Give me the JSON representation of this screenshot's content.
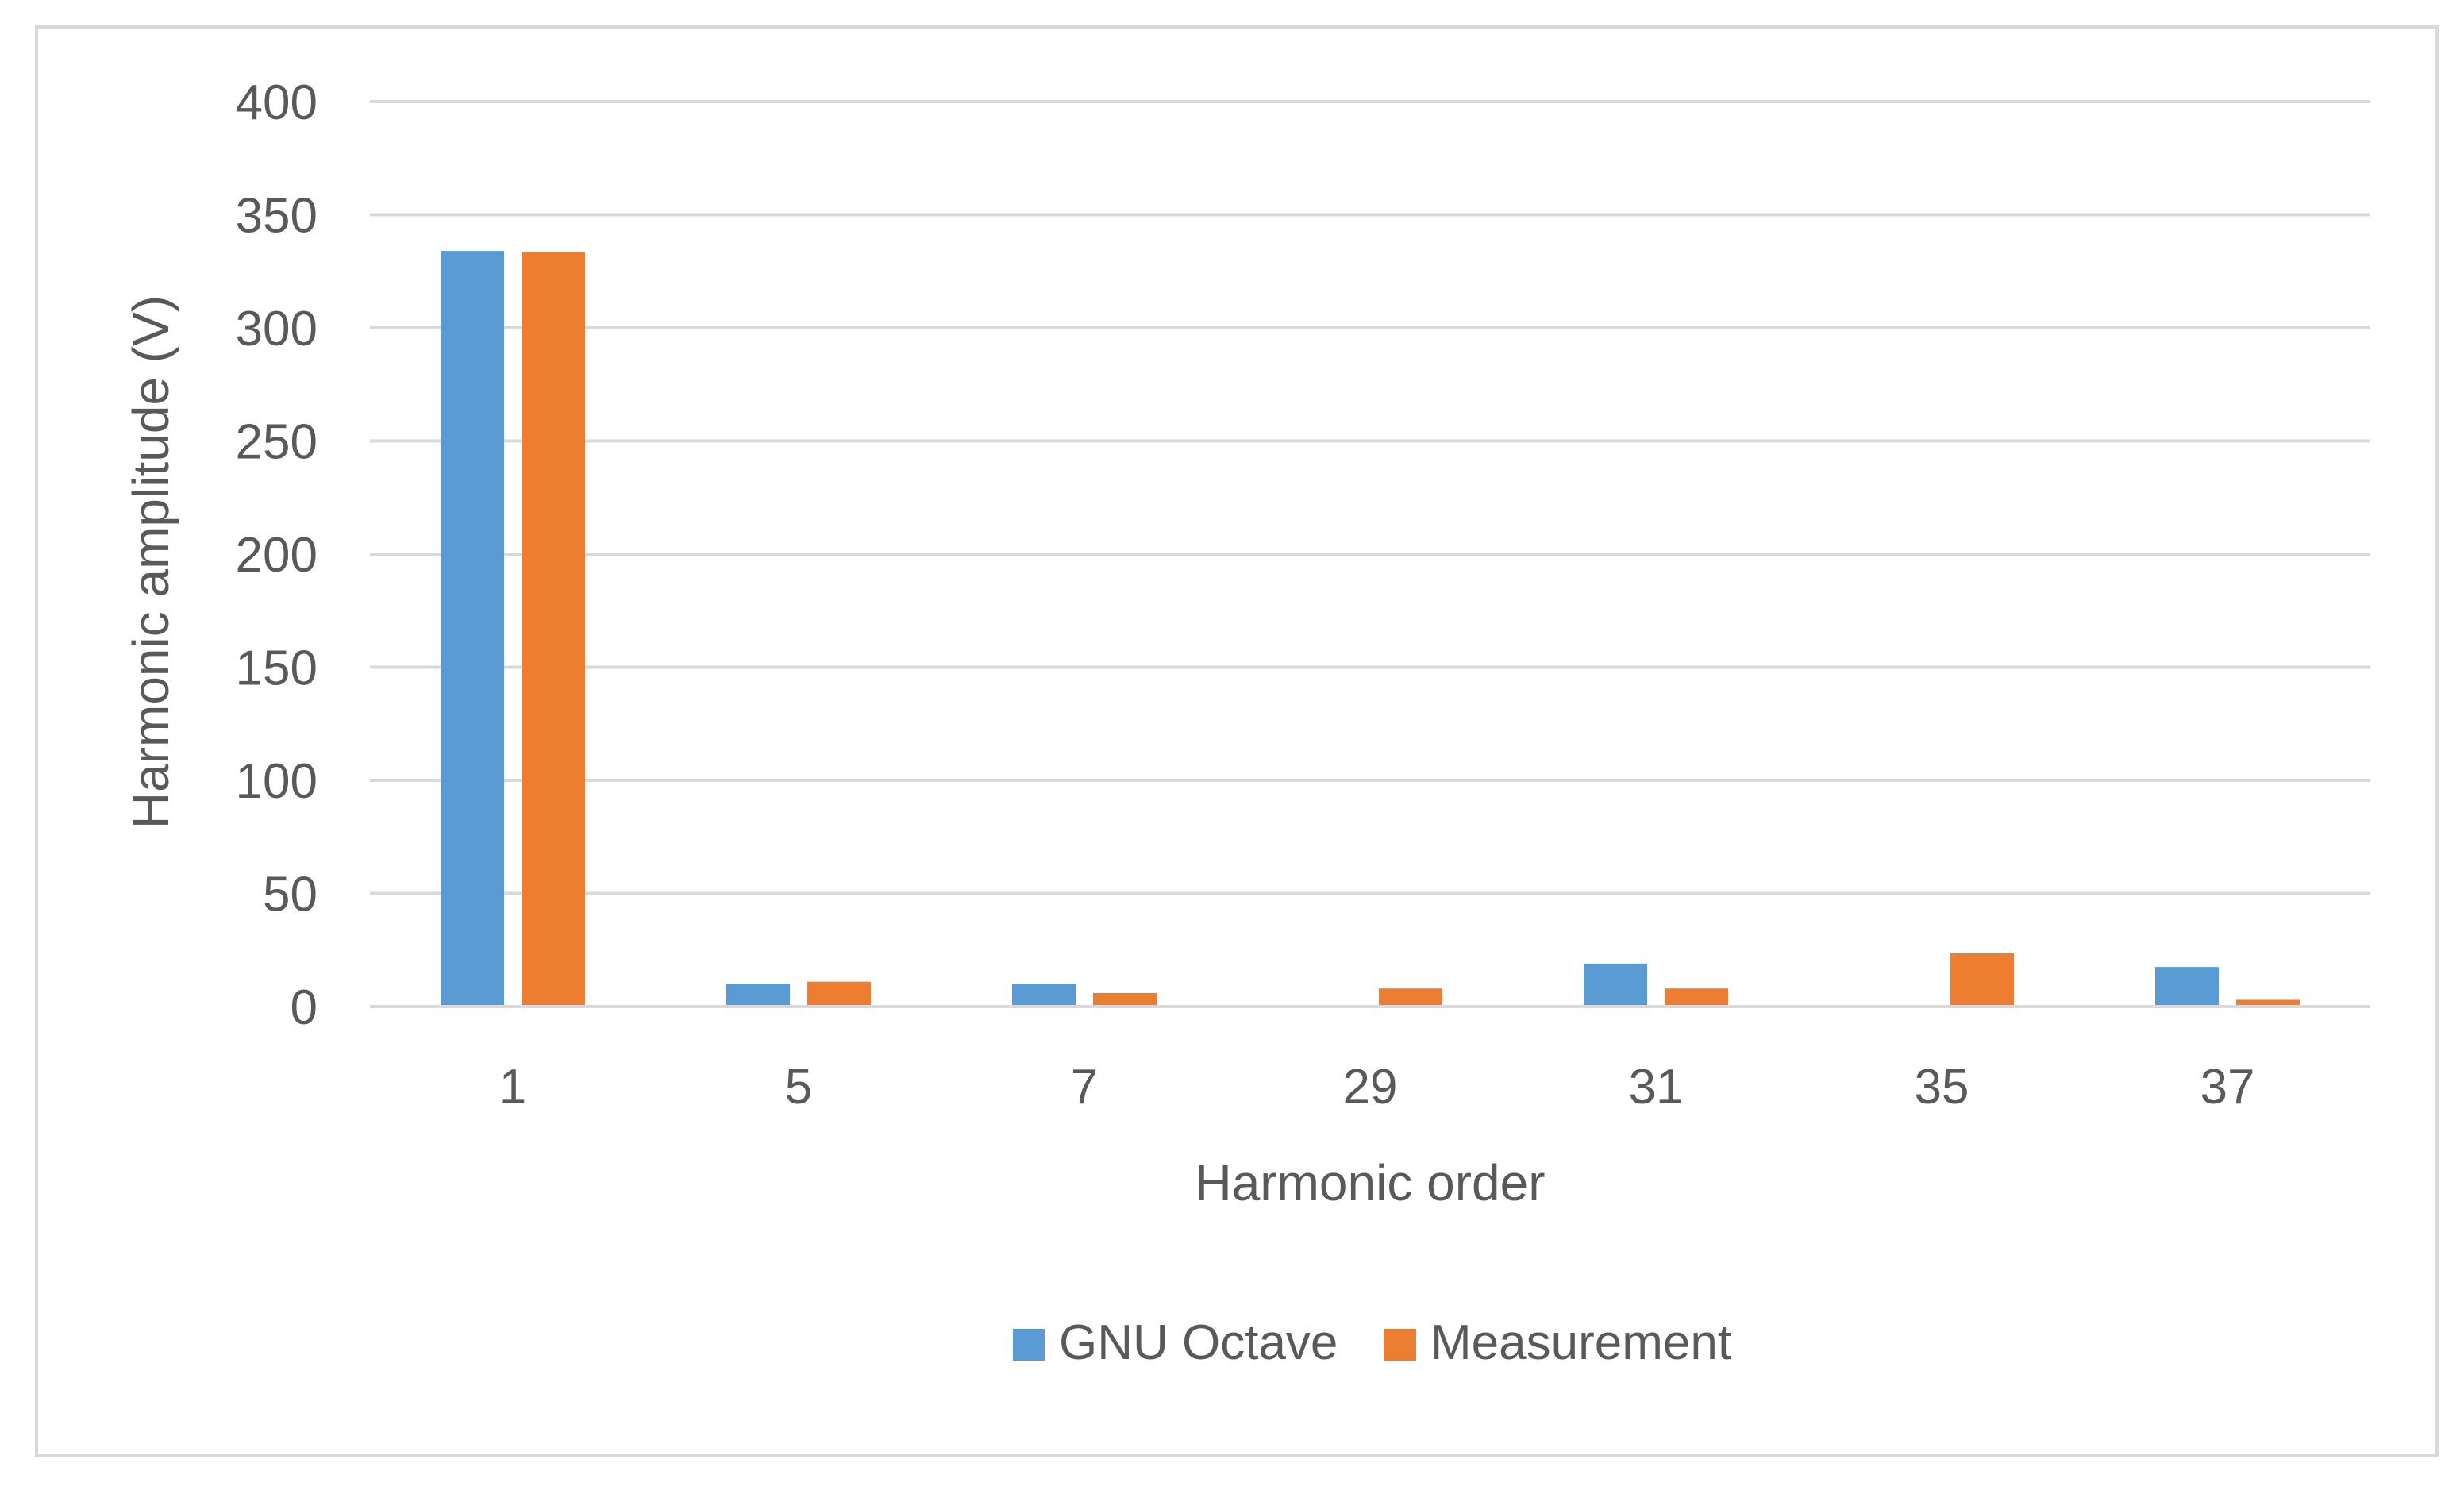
{
  "chart_data": {
    "type": "bar",
    "title": "",
    "xlabel": "Harmonic order",
    "ylabel": "Harmonic amplitude (V)",
    "categories": [
      "1",
      "5",
      "7",
      "29",
      "31",
      "35",
      "37"
    ],
    "series": [
      {
        "name": "GNU Octave",
        "color": "#5B9BD5",
        "values": [
          334,
          10,
          10,
          0,
          19,
          0,
          17.5
        ]
      },
      {
        "name": "Measurement",
        "color": "#ED7D31",
        "values": [
          333.5,
          11,
          6,
          8,
          8,
          23.5,
          3
        ]
      }
    ],
    "ylim": [
      0,
      400
    ],
    "yticks": [
      0,
      50,
      100,
      150,
      200,
      250,
      300,
      350,
      400
    ],
    "grid": true,
    "legend_position": "bottom"
  }
}
